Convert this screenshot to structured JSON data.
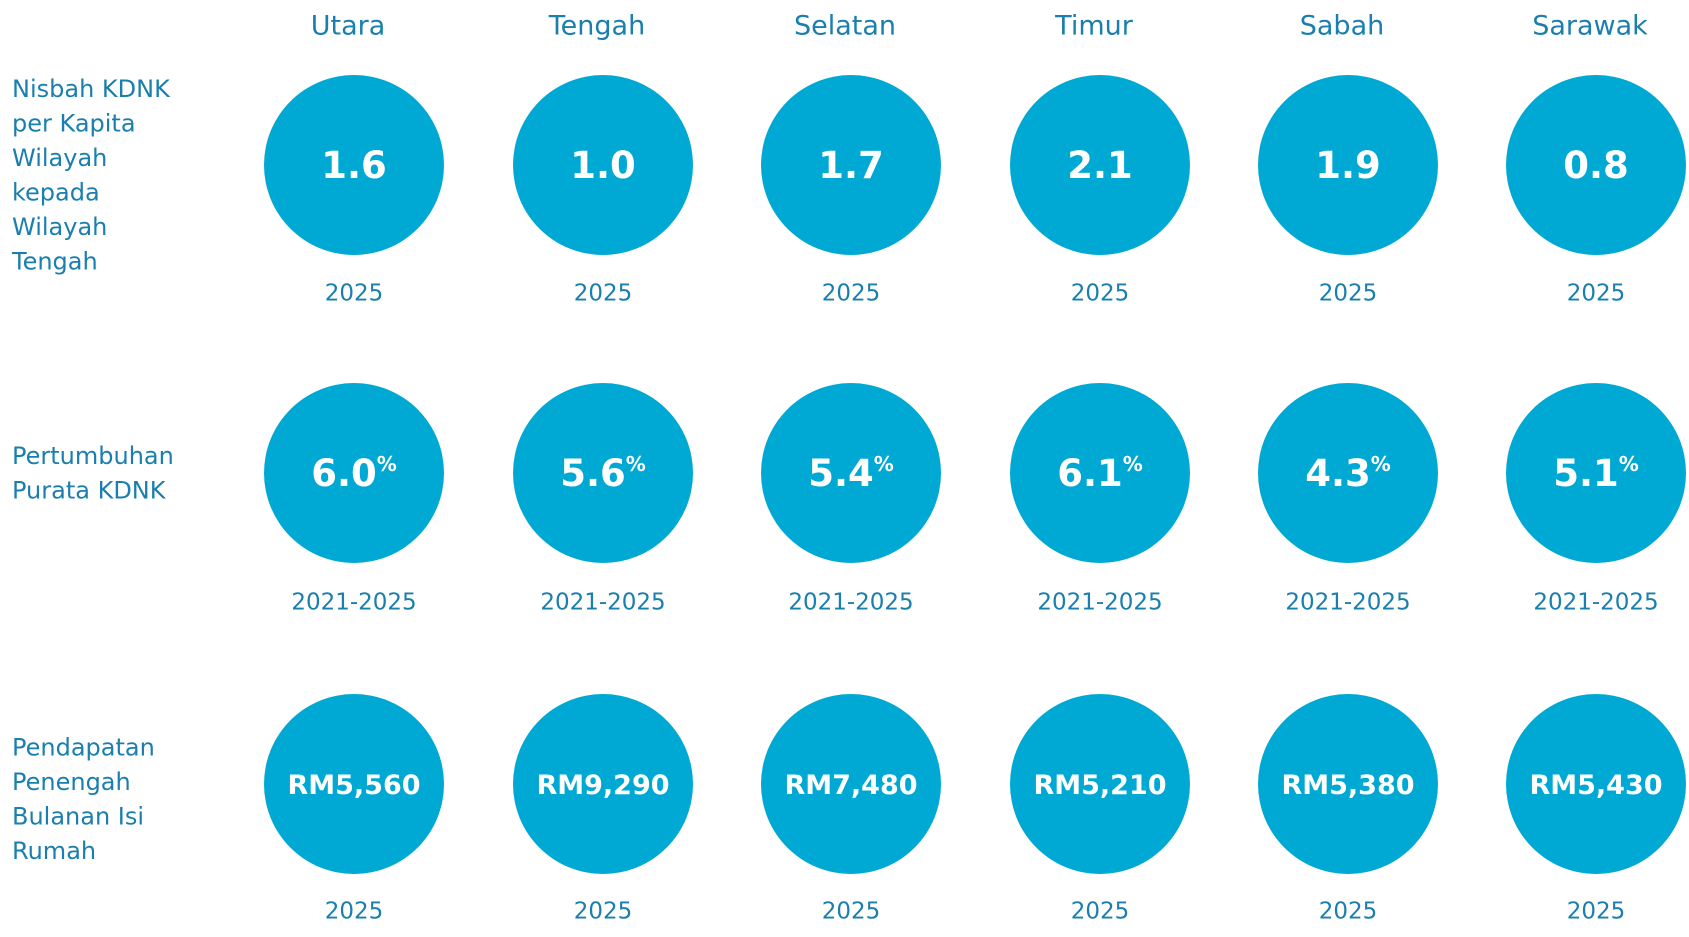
{
  "regions": [
    "Utara",
    "Tengah",
    "Selatan",
    "Timur",
    "Sabah",
    "Sarawak"
  ],
  "rows": [
    {
      "label_lines": [
        "Nisbah KDNK",
        "per Kapita",
        "Wilayah",
        "kepada",
        "Wilayah",
        "Tengah"
      ],
      "values": [
        "1.6",
        "1.0",
        "1.7",
        "2.1",
        "1.9",
        "0.8"
      ],
      "period": "2025"
    },
    {
      "label_lines": [
        "Pertumbuhan",
        "Purata KDNK"
      ],
      "values": [
        "6.0",
        "5.6",
        "5.4",
        "6.1",
        "4.3",
        "5.1"
      ],
      "unit": "%",
      "period": "2021-2025"
    },
    {
      "label_lines": [
        "Pendapatan",
        "Penengah",
        "Bulanan Isi",
        "Rumah"
      ],
      "values": [
        "RM5,560",
        "RM9,290",
        "RM7,480",
        "RM5,210",
        "RM5,380",
        "RM5,430"
      ],
      "period": "2025"
    }
  ]
}
